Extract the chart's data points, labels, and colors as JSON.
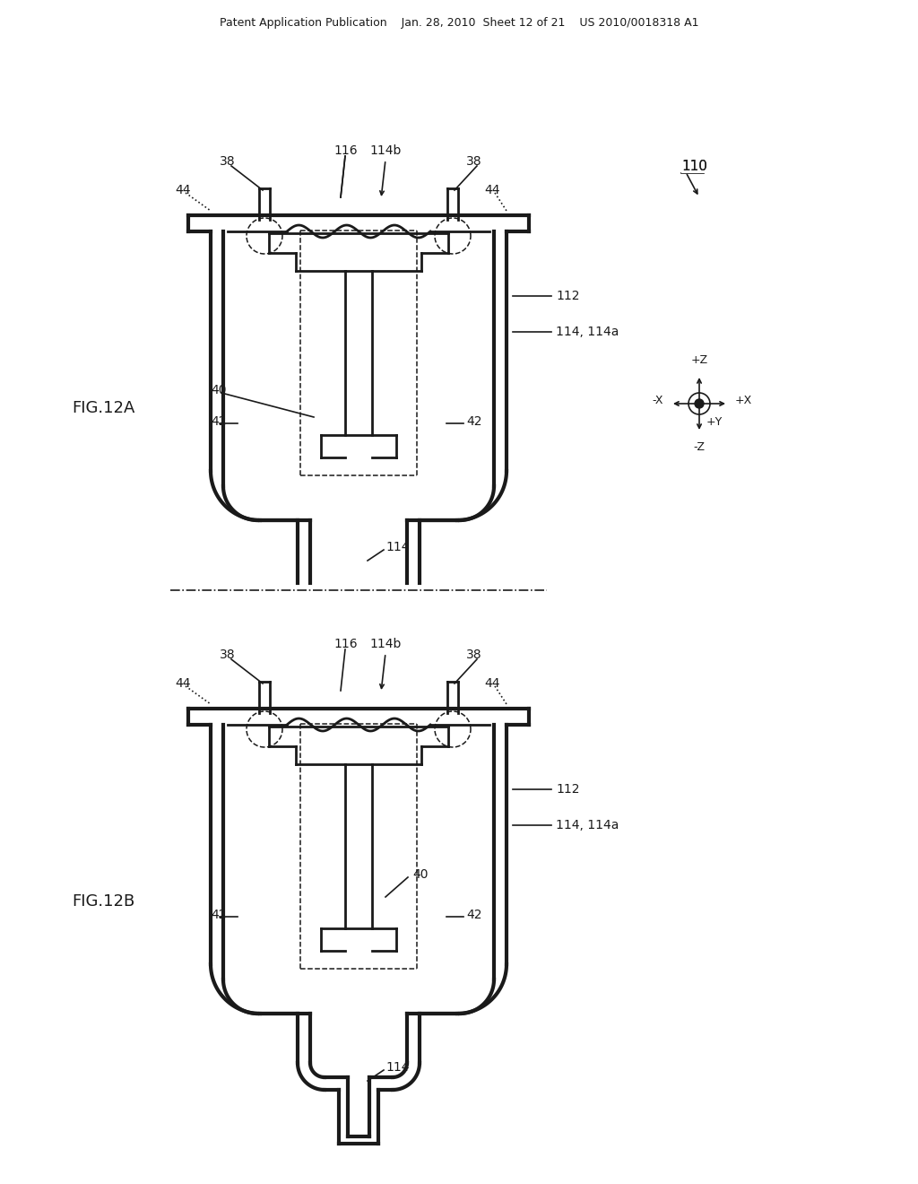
{
  "bg_color": "#ffffff",
  "line_color": "#1a1a1a",
  "header_text": "Patent Application Publication    Jan. 28, 2010  Sheet 12 of 21    US 2010/0018318 A1"
}
